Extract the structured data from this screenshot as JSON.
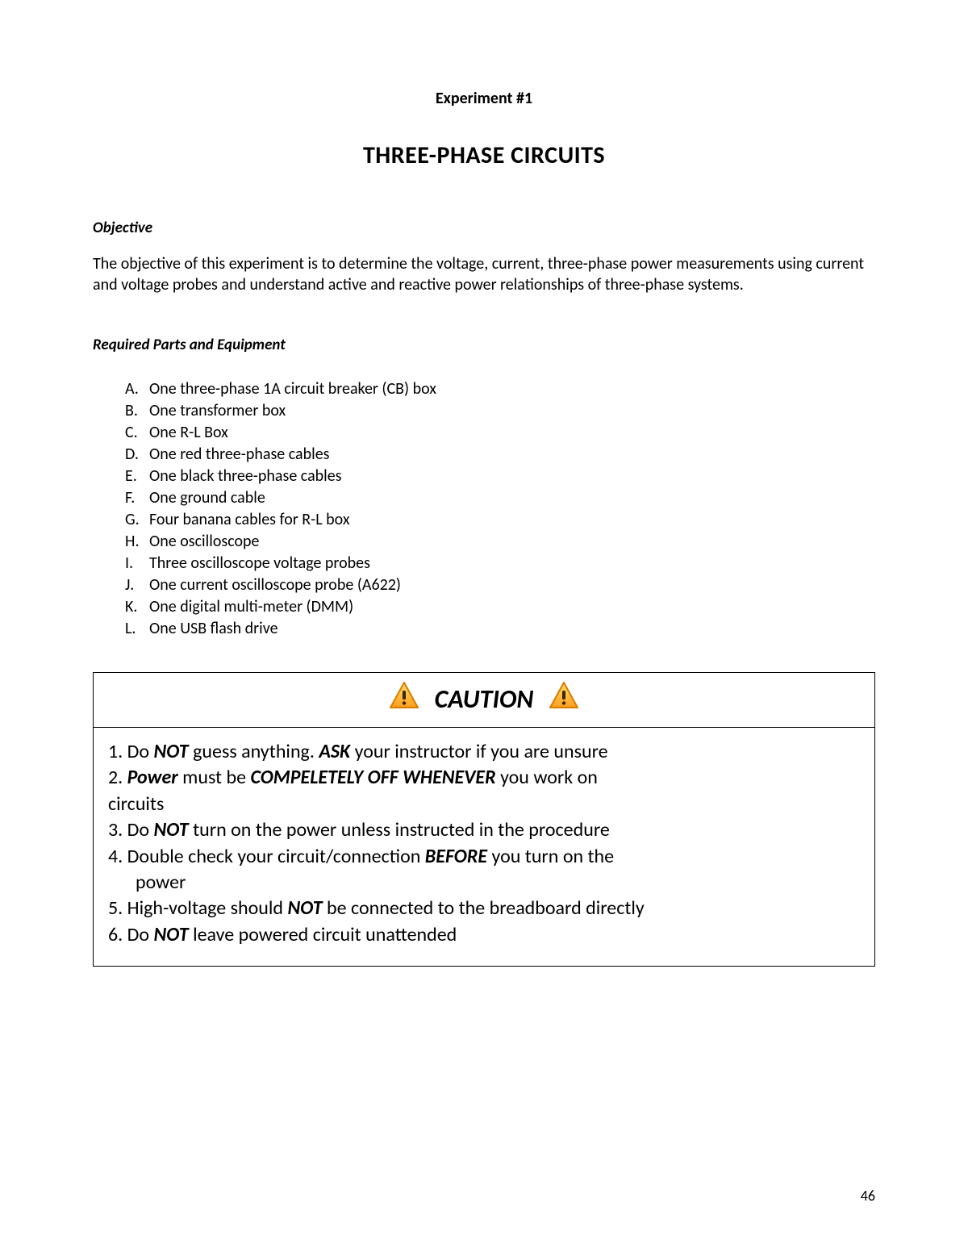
{
  "experiment_label": "Experiment #1",
  "title": "THREE-PHASE CIRCUITS",
  "objective": {
    "heading": "Objective",
    "text": "The objective of this experiment is to determine the voltage, current, three-phase power measurements using current and voltage probes and understand active and reactive power relationships of three-phase systems."
  },
  "parts": {
    "heading": "Required Parts and Equipment",
    "items": [
      {
        "marker": "A.",
        "text": "One three-phase 1A circuit breaker (CB) box"
      },
      {
        "marker": "B.",
        "text": "One transformer box"
      },
      {
        "marker": "C.",
        "text": "One R-L Box"
      },
      {
        "marker": "D.",
        "text": "One red three-phase cables"
      },
      {
        "marker": "E.",
        "text": "One black three-phase cables"
      },
      {
        "marker": "F.",
        "text": "One ground cable"
      },
      {
        "marker": "G.",
        "text": "Four banana cables for R-L box"
      },
      {
        "marker": "H.",
        "text": "One oscilloscope"
      },
      {
        "marker": "I.",
        "text": "Three oscilloscope voltage probes"
      },
      {
        "marker": "J.",
        "text": "One current oscilloscope probe (A622)"
      },
      {
        "marker": "K.",
        "text": "One digital multi-meter (DMM)"
      },
      {
        "marker": "L.",
        "text": "One USB flash drive"
      }
    ]
  },
  "caution": {
    "label": "CAUTION",
    "icon_colors": {
      "fill_top": "#ffe066",
      "fill_bottom": "#ff9d1f",
      "border": "#d97b00",
      "glyph": "#3a2600"
    },
    "rows": [
      {
        "n": "1.",
        "segments": [
          {
            "t": "Do ",
            "s": ""
          },
          {
            "t": "NOT",
            "s": "bi"
          },
          {
            "t": " guess anything. ",
            "s": ""
          },
          {
            "t": "ASK",
            "s": "bi"
          },
          {
            "t": " your instructor if you are unsure",
            "s": ""
          }
        ],
        "indent": false
      },
      {
        "n": "2.",
        "segments": [
          {
            "t": "Power",
            "s": "bi"
          },
          {
            "t": " must be ",
            "s": ""
          },
          {
            "t": "COMPELETELY OFF WHENEVER",
            "s": "bi"
          },
          {
            "t": " you work on",
            "s": ""
          }
        ],
        "indent": false
      },
      {
        "n": "",
        "segments": [
          {
            "t": "circuits",
            "s": ""
          }
        ],
        "indent": false,
        "continuation": true
      },
      {
        "n": "3.",
        "segments": [
          {
            "t": "Do ",
            "s": ""
          },
          {
            "t": "NOT",
            "s": "bi"
          },
          {
            "t": " turn on the power unless instructed in the procedure",
            "s": ""
          }
        ],
        "indent": false
      },
      {
        "n": "4.",
        "segments": [
          {
            "t": "Double check your circuit/connection ",
            "s": ""
          },
          {
            "t": "BEFORE",
            "s": "bi"
          },
          {
            "t": " you turn on the",
            "s": ""
          }
        ],
        "indent": false
      },
      {
        "n": "",
        "segments": [
          {
            "t": "power",
            "s": ""
          }
        ],
        "indent": true,
        "continuation": true
      },
      {
        "n": "5.",
        "segments": [
          {
            "t": "High-voltage should ",
            "s": ""
          },
          {
            "t": "NOT",
            "s": "bi"
          },
          {
            "t": " be connected to the breadboard directly",
            "s": ""
          }
        ],
        "indent": false
      },
      {
        "n": "6.",
        "segments": [
          {
            "t": "Do ",
            "s": ""
          },
          {
            "t": "NOT",
            "s": "bi"
          },
          {
            "t": " leave powered circuit unattended",
            "s": ""
          }
        ],
        "indent": false
      }
    ]
  },
  "page_number": "46"
}
